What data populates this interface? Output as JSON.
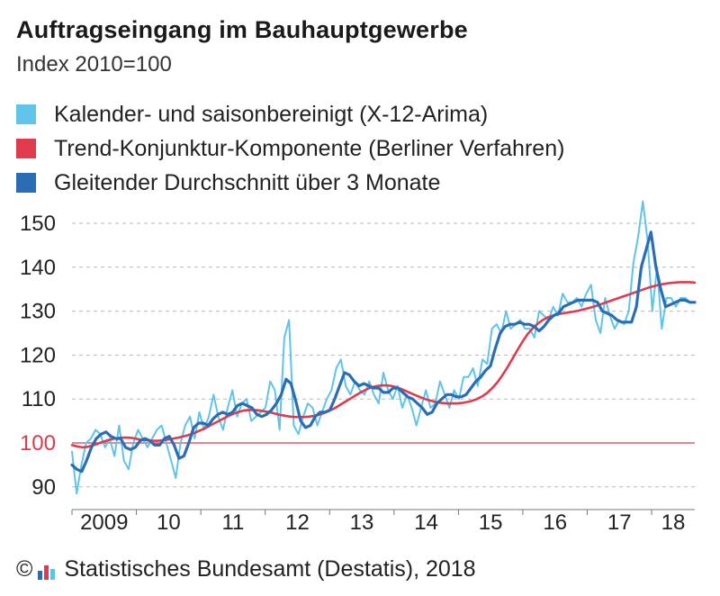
{
  "chart_data": {
    "type": "line",
    "title": "Auftragseingang im Bauhauptgewerbe",
    "subtitle": "Index 2010=100",
    "ylim": [
      88,
      157
    ],
    "yticks": [
      90,
      100,
      110,
      120,
      130,
      140,
      150
    ],
    "reference_line": 100,
    "grid": "horizontal dashed",
    "legend_placement": "top-left",
    "x_start": 2009.0,
    "x_end": 2018.67,
    "xtick_labels": [
      {
        "year": 2009,
        "label": "2009"
      },
      {
        "year": 2010,
        "label": "10"
      },
      {
        "year": 2011,
        "label": "11"
      },
      {
        "year": 2012,
        "label": "12"
      },
      {
        "year": 2013,
        "label": "13"
      },
      {
        "year": 2014,
        "label": "14"
      },
      {
        "year": 2015,
        "label": "15"
      },
      {
        "year": 2016,
        "label": "16"
      },
      {
        "year": 2017,
        "label": "17"
      },
      {
        "year": 2018,
        "label": "18"
      }
    ],
    "series": [
      {
        "name": "Kalender- und saisonbereinigt (X-12-Arima)",
        "color": "#5fc3ea",
        "values": [
          98,
          88.5,
          95,
          100,
          101,
          103,
          102,
          99,
          101,
          97,
          104,
          96,
          94,
          100,
          103,
          101,
          99,
          101,
          103,
          104,
          100,
          96,
          92,
          100,
          104,
          106,
          101,
          107,
          103,
          106,
          111,
          106,
          103,
          108,
          112,
          106,
          109,
          110,
          105,
          106,
          107,
          108,
          114,
          112,
          103,
          124,
          128,
          104,
          102,
          106,
          109,
          108,
          104,
          107,
          110,
          112,
          117,
          119,
          113,
          111,
          114,
          112,
          111,
          114,
          111,
          109,
          116,
          112,
          110,
          113,
          108,
          111,
          108,
          104,
          108,
          112,
          108,
          109,
          114,
          111,
          108,
          112,
          110,
          115,
          115,
          117,
          113,
          119,
          118,
          126,
          127,
          125,
          130,
          126,
          127,
          128,
          126,
          126,
          124,
          130,
          129,
          128,
          131,
          129,
          134,
          132,
          132,
          133,
          131,
          134,
          136,
          128,
          125,
          133,
          129,
          126,
          128,
          127,
          130,
          141,
          147,
          155,
          146,
          130,
          140,
          126,
          133,
          133,
          131,
          133,
          133,
          132,
          132
        ]
      },
      {
        "name": "Trend-Konjunktur-Komponente (Berliner Verfahren)",
        "color": "#e03a4d",
        "values": [
          99.5,
          99.2,
          99.0,
          99.1,
          99.4,
          99.8,
          100.2,
          100.6,
          100.9,
          101.1,
          101.2,
          101.2,
          101.1,
          100.9,
          100.7,
          100.6,
          100.5,
          100.5,
          100.6,
          100.8,
          101.0,
          101.2,
          101.5,
          101.8,
          102.2,
          102.7,
          103.2,
          103.8,
          104.4,
          105.0,
          105.6,
          106.2,
          106.7,
          107.1,
          107.4,
          107.5,
          107.5,
          107.4,
          107.2,
          107.0,
          106.7,
          106.4,
          106.2,
          106.0,
          105.9,
          105.9,
          105.9,
          106.0,
          106.2,
          106.5,
          106.9,
          107.4,
          108.0,
          108.7,
          109.4,
          110.1,
          110.8,
          111.5,
          112.1,
          112.6,
          112.9,
          113.1,
          113.1,
          113.0,
          112.7,
          112.3,
          111.8,
          111.3,
          110.8,
          110.3,
          109.9,
          109.6,
          109.3,
          109.1,
          109.0,
          109.0,
          109.0,
          109.1,
          109.3,
          109.6,
          110.0,
          110.6,
          111.4,
          112.5,
          113.8,
          115.4,
          117.2,
          119.2,
          121.2,
          123.1,
          124.8,
          126.1,
          127.2,
          128.0,
          128.6,
          129.0,
          129.3,
          129.5,
          129.7,
          129.9,
          130.1,
          130.4,
          130.7,
          131.0,
          131.4,
          131.8,
          132.2,
          132.6,
          133.0,
          133.4,
          133.8,
          134.2,
          134.6,
          135.0,
          135.4,
          135.7,
          136.0,
          136.2,
          136.4,
          136.5,
          136.6,
          136.6,
          136.6,
          136.5
        ]
      },
      {
        "name": "Gleitender Durchschnitt über 3 Monate",
        "color": "#2a6db4",
        "values": [
          95,
          94,
          93.5,
          96,
          99,
          101,
          102,
          102.5,
          101.5,
          101,
          101,
          99,
          98.5,
          99,
          100.5,
          101,
          100.5,
          99.5,
          99.5,
          101,
          101.5,
          99.5,
          96.5,
          97,
          100,
          103.5,
          104.5,
          104.5,
          104,
          105.5,
          106.5,
          107,
          106.5,
          107,
          108.5,
          109,
          108.5,
          108,
          106.5,
          106,
          106.5,
          107.5,
          109,
          111,
          114.5,
          113.5,
          109.5,
          105,
          103.5,
          104,
          106,
          107,
          107,
          107.5,
          110,
          113,
          116,
          115.5,
          114,
          113,
          113.5,
          113,
          112.5,
          112.5,
          111.5,
          111.5,
          112.5,
          112.5,
          111.5,
          110.5,
          110,
          109,
          108,
          106.5,
          107,
          109,
          110,
          111,
          111,
          110.5,
          110.5,
          111,
          112.5,
          114,
          115,
          116.5,
          117.5,
          121.5,
          125,
          126.5,
          127,
          127,
          127.5,
          127,
          127,
          126.5,
          125.5,
          126.5,
          128,
          129,
          129.5,
          131,
          131.5,
          132,
          132.5,
          132.5,
          132.5,
          132.5,
          132,
          130,
          129.5,
          129,
          128,
          127.5,
          127.5,
          127.5,
          131,
          140,
          144,
          148,
          140,
          135,
          131,
          131.5,
          132,
          132.5,
          132.5,
          132,
          132
        ]
      }
    ]
  },
  "footer": {
    "copyright": "©",
    "source": "Statistisches Bundesamt (Destatis), 2018"
  }
}
